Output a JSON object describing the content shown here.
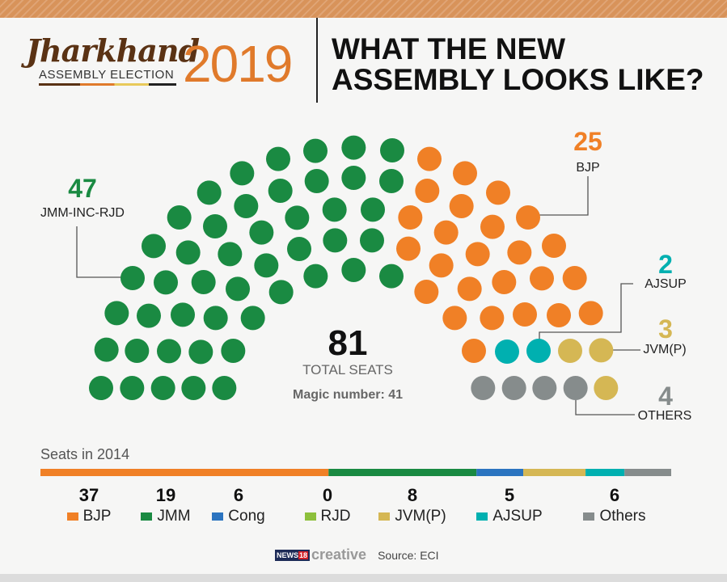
{
  "header": {
    "logo_name": "Jharkhand",
    "logo_subtitle": "ASSEMBLY ELECTION",
    "logo_year": "2019",
    "title_line1": "WHAT THE NEW",
    "title_line2": "ASSEMBLY LOOKS LIKE?"
  },
  "center": {
    "total": "81",
    "total_label": "TOTAL SEATS",
    "magic_number": "Magic number: 41"
  },
  "colors": {
    "green": "#1a8a42",
    "orange": "#f08026",
    "teal": "#00b0b0",
    "gold": "#d5b754",
    "gray": "#868c8c",
    "blue": "#2b74c0",
    "lightgreen": "#8dc03c"
  },
  "chart_data": [
    {
      "type": "parliament",
      "total": 81,
      "series": [
        {
          "name": "JMM-INC-RJD",
          "value": 47,
          "label": "47",
          "color": "#1a8a42"
        },
        {
          "name": "BJP",
          "value": 25,
          "label": "25",
          "color": "#f08026"
        },
        {
          "name": "AJSUP",
          "value": 2,
          "label": "2",
          "color": "#00b0b0"
        },
        {
          "name": "JVM(P)",
          "value": 3,
          "label": "3",
          "color": "#d5b754"
        },
        {
          "name": "OTHERS",
          "value": 4,
          "label": "4",
          "color": "#868c8c"
        }
      ]
    },
    {
      "type": "bar",
      "stacked": true,
      "title": "Seats in 2014",
      "categories": [
        "BJP",
        "JMM",
        "Cong",
        "RJD",
        "JVM(P)",
        "AJSUP",
        "Others"
      ],
      "values": [
        37,
        19,
        6,
        0,
        8,
        5,
        6
      ],
      "value_labels": [
        "37",
        "19",
        "6",
        "0",
        "8",
        "5",
        "6"
      ],
      "colors": [
        "#f08026",
        "#1a8a42",
        "#2b74c0",
        "#8dc03c",
        "#d5b754",
        "#00b0b0",
        "#868c8c"
      ]
    }
  ],
  "footer": {
    "brand_news": "NEWS",
    "brand_18": "18",
    "brand_creative": "creative",
    "source": "Source: ECI"
  }
}
